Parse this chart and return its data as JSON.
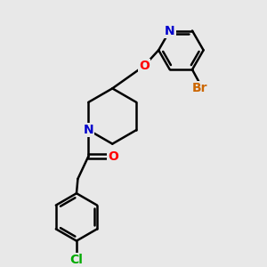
{
  "background_color": "#e8e8e8",
  "bond_color": "#000000",
  "atom_colors": {
    "N": "#0000cc",
    "O": "#ff0000",
    "Br": "#cc6600",
    "Cl": "#00aa00",
    "C": "#000000"
  },
  "bond_width": 1.8,
  "font_size_atom": 10
}
